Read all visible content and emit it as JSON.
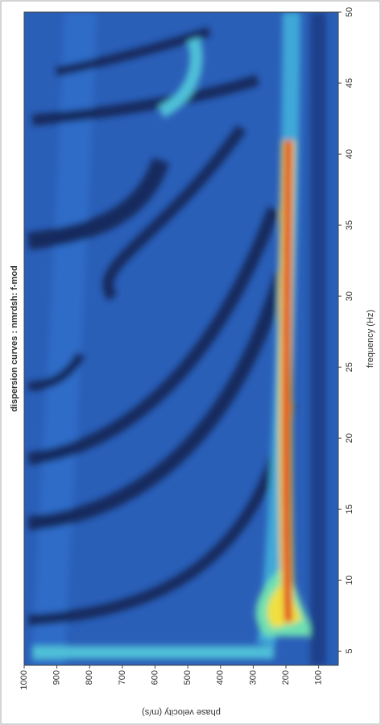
{
  "chart_data": {
    "type": "heatmap",
    "title": "dispersion curves : nmrdsh: f-mod",
    "x_label": "frequency (Hz)",
    "y_label": "phase velocity (m/s)",
    "xlim": [
      4,
      50
    ],
    "xticks": [
      5,
      10,
      15,
      20,
      25,
      30,
      35,
      40,
      45,
      50
    ],
    "ylim": [
      40,
      1000
    ],
    "yticks": [
      100,
      200,
      300,
      400,
      500,
      600,
      700,
      800,
      900,
      1000
    ]
  }
}
